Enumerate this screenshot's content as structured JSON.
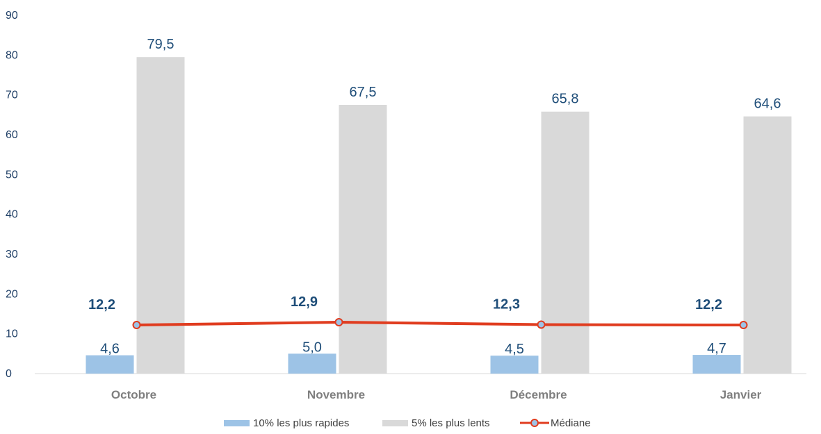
{
  "chart_data": {
    "type": "bar",
    "categories": [
      "Octobre",
      "Novembre",
      "Décembre",
      "Janvier"
    ],
    "series": [
      {
        "name": "10% les plus rapides",
        "type": "bar",
        "color": "#9dc3e6",
        "values": [
          4.6,
          5.0,
          4.5,
          4.7
        ],
        "labels": [
          "4,6",
          "5,0",
          "4,5",
          "4,7"
        ]
      },
      {
        "name": "5% les plus lents",
        "type": "bar",
        "color": "#d9d9d9",
        "values": [
          79.5,
          67.5,
          65.8,
          64.6
        ],
        "labels": [
          "79,5",
          "67,5",
          "65,8",
          "64,6"
        ]
      },
      {
        "name": "Médiane",
        "type": "line",
        "color": "#e03c1f",
        "marker_color": "#9dc3e6",
        "values": [
          12.2,
          12.9,
          12.3,
          12.2
        ],
        "labels": [
          "12,2",
          "12,9",
          "12,3",
          "12,2"
        ]
      }
    ],
    "ylim": [
      0,
      90
    ],
    "yticks": [
      "0",
      "10",
      "20",
      "30",
      "40",
      "50",
      "60",
      "70",
      "80",
      "90"
    ],
    "grid": false,
    "legend_position": "bottom",
    "title": "",
    "xlabel": "",
    "ylabel": ""
  }
}
